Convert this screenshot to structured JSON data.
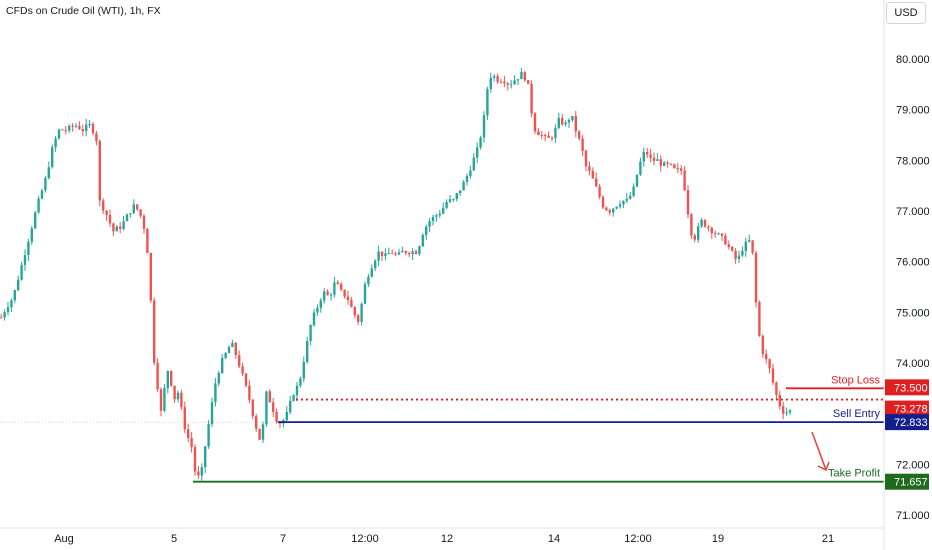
{
  "header": {
    "symbol_title": "CFDs on Crude Oil (WTI), 1h, FX",
    "currency_button": "USD"
  },
  "chart_data": {
    "type": "candlestick",
    "y_axis": {
      "range": [
        70.7,
        81.0
      ],
      "ticks": [
        "71.000",
        "72.000",
        "73.000",
        "74.000",
        "75.000",
        "76.000",
        "77.000",
        "78.000",
        "79.000",
        "80.000"
      ]
    },
    "x_axis": {
      "ticks": [
        "Aug",
        "5",
        "7",
        "12:00",
        "12",
        "14",
        "12:00",
        "19",
        "21"
      ]
    },
    "price_path": [
      [
        0,
        74.9
      ],
      [
        5,
        75.1
      ],
      [
        12,
        75.3
      ],
      [
        20,
        75.9
      ],
      [
        28,
        76.5
      ],
      [
        36,
        77.1
      ],
      [
        44,
        77.6
      ],
      [
        52,
        78.3
      ],
      [
        58,
        78.6
      ],
      [
        66,
        78.6
      ],
      [
        74,
        78.7
      ],
      [
        82,
        78.6
      ],
      [
        88,
        78.7
      ],
      [
        95,
        78.5
      ],
      [
        98,
        77.2
      ],
      [
        104,
        77.0
      ],
      [
        112,
        76.6
      ],
      [
        120,
        76.7
      ],
      [
        126,
        76.9
      ],
      [
        132,
        77.1
      ],
      [
        138,
        77.0
      ],
      [
        144,
        76.6
      ],
      [
        148,
        75.9
      ],
      [
        152,
        74.2
      ],
      [
        156,
        73.6
      ],
      [
        160,
        73.0
      ],
      [
        164,
        73.6
      ],
      [
        168,
        74.0
      ],
      [
        172,
        73.2
      ],
      [
        176,
        73.5
      ],
      [
        180,
        73.1
      ],
      [
        185,
        72.6
      ],
      [
        190,
        72.4
      ],
      [
        195,
        71.7
      ],
      [
        200,
        71.8
      ],
      [
        205,
        72.5
      ],
      [
        210,
        73.1
      ],
      [
        215,
        73.7
      ],
      [
        220,
        74.0
      ],
      [
        225,
        74.2
      ],
      [
        230,
        74.4
      ],
      [
        236,
        74.1
      ],
      [
        242,
        73.7
      ],
      [
        248,
        73.3
      ],
      [
        254,
        72.8
      ],
      [
        260,
        72.4
      ],
      [
        265,
        73.4
      ],
      [
        270,
        73.2
      ],
      [
        275,
        72.9
      ],
      [
        280,
        72.8
      ],
      [
        286,
        73.0
      ],
      [
        292,
        73.4
      ],
      [
        298,
        73.6
      ],
      [
        304,
        74.2
      ],
      [
        310,
        74.8
      ],
      [
        316,
        75.1
      ],
      [
        322,
        75.4
      ],
      [
        328,
        75.3
      ],
      [
        334,
        75.6
      ],
      [
        340,
        75.4
      ],
      [
        346,
        75.3
      ],
      [
        352,
        75.0
      ],
      [
        358,
        74.8
      ],
      [
        362,
        75.4
      ],
      [
        366,
        75.7
      ],
      [
        372,
        76.0
      ],
      [
        378,
        76.2
      ],
      [
        384,
        76.1
      ],
      [
        390,
        76.2
      ],
      [
        396,
        76.1
      ],
      [
        402,
        76.2
      ],
      [
        410,
        76.2
      ],
      [
        416,
        76.2
      ],
      [
        422,
        76.6
      ],
      [
        428,
        76.8
      ],
      [
        434,
        76.9
      ],
      [
        440,
        77.0
      ],
      [
        446,
        77.2
      ],
      [
        452,
        77.2
      ],
      [
        458,
        77.4
      ],
      [
        464,
        77.6
      ],
      [
        470,
        77.9
      ],
      [
        476,
        78.2
      ],
      [
        482,
        78.7
      ],
      [
        486,
        79.4
      ],
      [
        490,
        79.7
      ],
      [
        496,
        79.6
      ],
      [
        502,
        79.6
      ],
      [
        508,
        79.5
      ],
      [
        514,
        79.6
      ],
      [
        520,
        79.7
      ],
      [
        526,
        79.6
      ],
      [
        530,
        79.0
      ],
      [
        534,
        78.6
      ],
      [
        540,
        78.5
      ],
      [
        546,
        78.4
      ],
      [
        552,
        78.5
      ],
      [
        558,
        78.8
      ],
      [
        564,
        78.7
      ],
      [
        570,
        78.9
      ],
      [
        576,
        78.5
      ],
      [
        580,
        78.3
      ],
      [
        584,
        77.9
      ],
      [
        590,
        77.7
      ],
      [
        596,
        77.4
      ],
      [
        602,
        77.1
      ],
      [
        608,
        77.0
      ],
      [
        614,
        77.1
      ],
      [
        620,
        77.2
      ],
      [
        626,
        77.2
      ],
      [
        632,
        77.4
      ],
      [
        638,
        77.9
      ],
      [
        644,
        78.2
      ],
      [
        650,
        78.0
      ],
      [
        656,
        78.0
      ],
      [
        662,
        77.9
      ],
      [
        668,
        77.9
      ],
      [
        674,
        77.8
      ],
      [
        680,
        77.8
      ],
      [
        684,
        77.4
      ],
      [
        688,
        76.8
      ],
      [
        692,
        76.4
      ],
      [
        696,
        76.6
      ],
      [
        700,
        76.8
      ],
      [
        706,
        76.7
      ],
      [
        712,
        76.6
      ],
      [
        718,
        76.5
      ],
      [
        724,
        76.4
      ],
      [
        730,
        76.2
      ],
      [
        736,
        76.0
      ],
      [
        742,
        76.3
      ],
      [
        748,
        76.4
      ],
      [
        752,
        76.1
      ],
      [
        756,
        74.8
      ],
      [
        760,
        74.3
      ],
      [
        764,
        74.1
      ],
      [
        768,
        73.9
      ],
      [
        772,
        73.6
      ],
      [
        776,
        73.3
      ],
      [
        780,
        73.1
      ],
      [
        784,
        73.0
      ],
      [
        788,
        73.1
      ],
      [
        792,
        72.85
      ]
    ],
    "levels": [
      {
        "name": "Stop Loss",
        "value": 73.5,
        "label": "73.500",
        "color": "#e02020",
        "style": "solid"
      },
      {
        "name": "",
        "value": 73.278,
        "label": "73.278",
        "color": "#e02020",
        "style": "dotted"
      },
      {
        "name": "Sell Entry",
        "value": 72.833,
        "label": "72.833",
        "color": "#131f8c",
        "style": "solid"
      },
      {
        "name": "Take Profit",
        "value": 71.657,
        "label": "71.657",
        "color": "#1e6b1e",
        "style": "solid"
      }
    ],
    "colors": {
      "up": "#26a69a",
      "down": "#ef5350"
    }
  }
}
